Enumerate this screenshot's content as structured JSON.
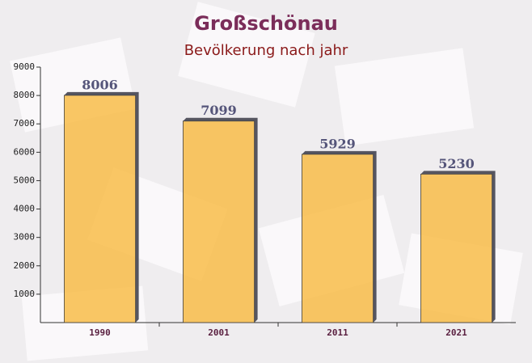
{
  "chart_data": {
    "type": "bar",
    "title": "Großschönau",
    "subtitle": "Bevölkerung nach jahr",
    "categories": [
      "1990",
      "2001",
      "2011",
      "2021"
    ],
    "values": [
      8006,
      7099,
      5929,
      5230
    ],
    "color": "#f9b93e",
    "ylim": [
      0,
      9000
    ],
    "yticks": [
      1000,
      2000,
      3000,
      4000,
      5000,
      6000,
      7000,
      8000,
      9000
    ]
  }
}
